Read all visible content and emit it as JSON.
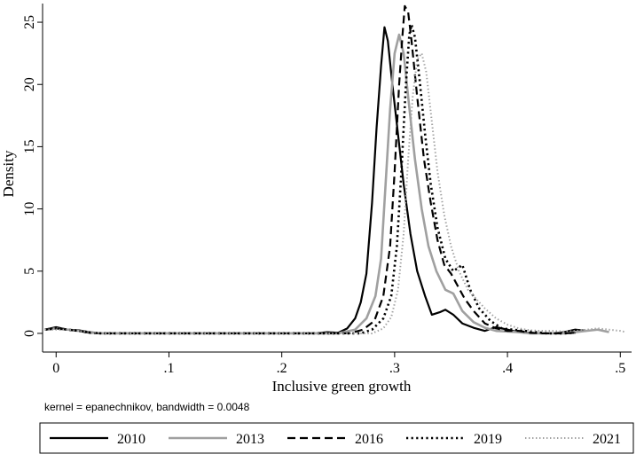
{
  "chart_data": {
    "type": "line",
    "title": "",
    "xlabel": "Inclusive green growth",
    "ylabel": "Density",
    "note": "kernel = epanechnikov, bandwidth = 0.0048",
    "xlim": [
      -0.012,
      0.51
    ],
    "ylim": [
      -1.5,
      26.5
    ],
    "x_ticks": [
      {
        "value": 0,
        "label": "0"
      },
      {
        "value": 0.1,
        "label": ".1"
      },
      {
        "value": 0.2,
        "label": ".2"
      },
      {
        "value": 0.3,
        "label": ".3"
      },
      {
        "value": 0.4,
        "label": ".4"
      },
      {
        "value": 0.5,
        "label": ".5"
      }
    ],
    "y_ticks": [
      {
        "value": 0,
        "label": "0"
      },
      {
        "value": 5,
        "label": "5"
      },
      {
        "value": 10,
        "label": "10"
      },
      {
        "value": 15,
        "label": "15"
      },
      {
        "value": 20,
        "label": "20"
      },
      {
        "value": 25,
        "label": "25"
      }
    ],
    "grid": false,
    "legend_position": "bottom",
    "series": [
      {
        "name": "2010",
        "color": "#000000",
        "dash": "solid",
        "width": 2.2,
        "points": [
          [
            -0.01,
            0.3
          ],
          [
            0.0,
            0.5
          ],
          [
            0.01,
            0.3
          ],
          [
            0.02,
            0.25
          ],
          [
            0.03,
            0.1
          ],
          [
            0.04,
            0.0
          ],
          [
            0.1,
            0.0
          ],
          [
            0.2,
            0.0
          ],
          [
            0.23,
            0.0
          ],
          [
            0.24,
            0.1
          ],
          [
            0.25,
            0.05
          ],
          [
            0.258,
            0.4
          ],
          [
            0.265,
            1.2
          ],
          [
            0.27,
            2.5
          ],
          [
            0.275,
            4.8
          ],
          [
            0.28,
            10.5
          ],
          [
            0.284,
            16.5
          ],
          [
            0.288,
            21.5
          ],
          [
            0.291,
            24.6
          ],
          [
            0.294,
            23.5
          ],
          [
            0.298,
            20.0
          ],
          [
            0.303,
            16.0
          ],
          [
            0.308,
            12.0
          ],
          [
            0.314,
            8.0
          ],
          [
            0.32,
            5.0
          ],
          [
            0.327,
            3.0
          ],
          [
            0.333,
            1.5
          ],
          [
            0.34,
            1.7
          ],
          [
            0.345,
            1.9
          ],
          [
            0.352,
            1.5
          ],
          [
            0.36,
            0.8
          ],
          [
            0.37,
            0.45
          ],
          [
            0.38,
            0.2
          ],
          [
            0.39,
            0.5
          ],
          [
            0.4,
            0.3
          ],
          [
            0.41,
            0.1
          ],
          [
            0.42,
            0.05
          ],
          [
            0.43,
            0.0
          ],
          [
            0.44,
            0.0
          ],
          [
            0.45,
            0.1
          ],
          [
            0.46,
            0.3
          ],
          [
            0.47,
            0.2
          ]
        ]
      },
      {
        "name": "2013",
        "color": "#a0a0a0",
        "dash": "solid",
        "width": 2.6,
        "points": [
          [
            -0.01,
            0.3
          ],
          [
            0.0,
            0.4
          ],
          [
            0.01,
            0.3
          ],
          [
            0.02,
            0.2
          ],
          [
            0.03,
            0.05
          ],
          [
            0.04,
            0.0
          ],
          [
            0.1,
            0.0
          ],
          [
            0.2,
            0.0
          ],
          [
            0.25,
            0.0
          ],
          [
            0.265,
            0.3
          ],
          [
            0.275,
            1.2
          ],
          [
            0.283,
            3.0
          ],
          [
            0.288,
            6.0
          ],
          [
            0.292,
            12.0
          ],
          [
            0.296,
            18.0
          ],
          [
            0.3,
            22.5
          ],
          [
            0.304,
            24.0
          ],
          [
            0.308,
            22.5
          ],
          [
            0.312,
            19.0
          ],
          [
            0.318,
            14.0
          ],
          [
            0.324,
            10.0
          ],
          [
            0.33,
            7.0
          ],
          [
            0.337,
            5.0
          ],
          [
            0.345,
            3.5
          ],
          [
            0.352,
            3.2
          ],
          [
            0.36,
            1.8
          ],
          [
            0.37,
            0.9
          ],
          [
            0.38,
            0.45
          ],
          [
            0.39,
            0.2
          ],
          [
            0.4,
            0.15
          ],
          [
            0.41,
            0.1
          ],
          [
            0.42,
            0.0
          ],
          [
            0.45,
            0.0
          ],
          [
            0.46,
            0.1
          ],
          [
            0.47,
            0.2
          ],
          [
            0.48,
            0.3
          ],
          [
            0.49,
            0.1
          ]
        ]
      },
      {
        "name": "2016",
        "color": "#000000",
        "dash": "9,5",
        "width": 2.2,
        "points": [
          [
            -0.01,
            0.3
          ],
          [
            0.0,
            0.4
          ],
          [
            0.01,
            0.3
          ],
          [
            0.02,
            0.2
          ],
          [
            0.03,
            0.05
          ],
          [
            0.04,
            0.0
          ],
          [
            0.1,
            0.0
          ],
          [
            0.2,
            0.0
          ],
          [
            0.26,
            0.0
          ],
          [
            0.272,
            0.3
          ],
          [
            0.282,
            1.0
          ],
          [
            0.29,
            3.0
          ],
          [
            0.296,
            7.0
          ],
          [
            0.3,
            13.0
          ],
          [
            0.304,
            20.0
          ],
          [
            0.307,
            24.0
          ],
          [
            0.309,
            26.3
          ],
          [
            0.312,
            25.8
          ],
          [
            0.315,
            23.5
          ],
          [
            0.32,
            19.0
          ],
          [
            0.326,
            14.0
          ],
          [
            0.332,
            10.5
          ],
          [
            0.338,
            7.5
          ],
          [
            0.344,
            5.5
          ],
          [
            0.35,
            4.8
          ],
          [
            0.356,
            3.8
          ],
          [
            0.362,
            2.8
          ],
          [
            0.37,
            1.8
          ],
          [
            0.38,
            0.8
          ],
          [
            0.39,
            0.4
          ],
          [
            0.4,
            0.2
          ],
          [
            0.41,
            0.2
          ],
          [
            0.42,
            0.05
          ],
          [
            0.43,
            0.0
          ],
          [
            0.45,
            0.0
          ],
          [
            0.46,
            0.05
          ]
        ]
      },
      {
        "name": "2019",
        "color": "#000000",
        "dash": "2.2,3.4",
        "width": 2.6,
        "points": [
          [
            -0.01,
            0.3
          ],
          [
            0.0,
            0.4
          ],
          [
            0.01,
            0.3
          ],
          [
            0.02,
            0.2
          ],
          [
            0.03,
            0.05
          ],
          [
            0.04,
            0.0
          ],
          [
            0.1,
            0.0
          ],
          [
            0.2,
            0.0
          ],
          [
            0.27,
            0.0
          ],
          [
            0.28,
            0.3
          ],
          [
            0.29,
            1.2
          ],
          [
            0.297,
            3.0
          ],
          [
            0.302,
            7.0
          ],
          [
            0.306,
            13.0
          ],
          [
            0.31,
            20.0
          ],
          [
            0.313,
            24.0
          ],
          [
            0.315,
            24.8
          ],
          [
            0.318,
            23.8
          ],
          [
            0.322,
            20.5
          ],
          [
            0.327,
            16.0
          ],
          [
            0.332,
            12.0
          ],
          [
            0.338,
            8.5
          ],
          [
            0.345,
            6.0
          ],
          [
            0.352,
            5.0
          ],
          [
            0.36,
            5.5
          ],
          [
            0.367,
            3.5
          ],
          [
            0.375,
            2.0
          ],
          [
            0.385,
            1.0
          ],
          [
            0.395,
            0.4
          ],
          [
            0.405,
            0.3
          ],
          [
            0.415,
            0.2
          ],
          [
            0.425,
            0.1
          ],
          [
            0.435,
            0.0
          ],
          [
            0.45,
            0.0
          ],
          [
            0.46,
            0.05
          ]
        ]
      },
      {
        "name": "2021",
        "color": "#a0a0a0",
        "dash": "1.4,2.6",
        "width": 2.0,
        "points": [
          [
            -0.01,
            0.3
          ],
          [
            0.0,
            0.3
          ],
          [
            0.01,
            0.3
          ],
          [
            0.02,
            0.2
          ],
          [
            0.03,
            0.1
          ],
          [
            0.04,
            0.0
          ],
          [
            0.1,
            0.0
          ],
          [
            0.2,
            0.0
          ],
          [
            0.28,
            0.0
          ],
          [
            0.29,
            0.4
          ],
          [
            0.297,
            1.3
          ],
          [
            0.303,
            3.5
          ],
          [
            0.308,
            8.0
          ],
          [
            0.312,
            14.0
          ],
          [
            0.316,
            19.0
          ],
          [
            0.32,
            22.0
          ],
          [
            0.324,
            22.5
          ],
          [
            0.328,
            21.0
          ],
          [
            0.333,
            17.0
          ],
          [
            0.338,
            13.0
          ],
          [
            0.344,
            9.5
          ],
          [
            0.35,
            7.0
          ],
          [
            0.357,
            5.0
          ],
          [
            0.365,
            3.5
          ],
          [
            0.372,
            2.8
          ],
          [
            0.38,
            2.0
          ],
          [
            0.39,
            1.2
          ],
          [
            0.4,
            0.7
          ],
          [
            0.41,
            0.4
          ],
          [
            0.42,
            0.25
          ],
          [
            0.43,
            0.2
          ],
          [
            0.44,
            0.2
          ],
          [
            0.45,
            0.15
          ],
          [
            0.46,
            0.2
          ],
          [
            0.47,
            0.3
          ],
          [
            0.48,
            0.4
          ],
          [
            0.49,
            0.3
          ],
          [
            0.5,
            0.2
          ],
          [
            0.505,
            0.1
          ]
        ]
      }
    ]
  }
}
